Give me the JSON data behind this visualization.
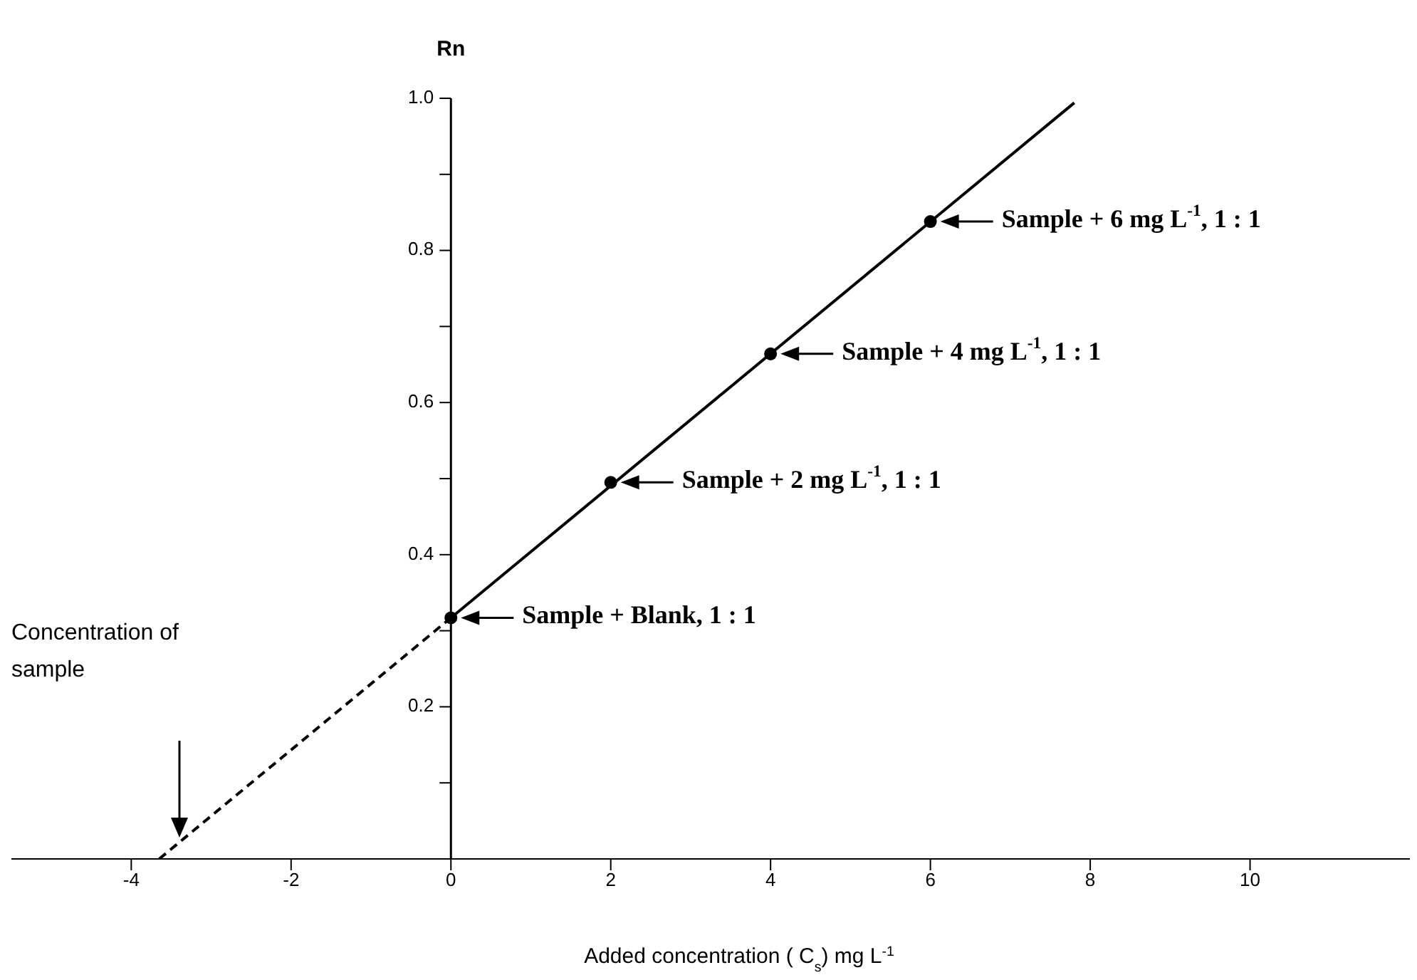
{
  "chart_data": {
    "type": "scatter",
    "ylabel": "Rn",
    "xlabel": "Added concentration ( C$_{s}$) mg L$^{-1}$",
    "xlim": [
      -5.5,
      12
    ],
    "xticks": [
      -4,
      -2,
      0,
      2,
      4,
      6,
      8,
      10
    ],
    "ylim": [
      0,
      1.0
    ],
    "yticks": [
      {
        "value": 0,
        "label": null
      },
      {
        "value": 0.1,
        "label": null
      },
      0.2,
      {
        "value": 0.3,
        "label": null
      },
      0.4,
      {
        "value": 0.5,
        "label": null
      },
      0.6,
      {
        "value": 0.7,
        "label": null
      },
      0.8,
      {
        "value": 0.9,
        "label": null
      },
      {
        "value": 1,
        "label": "1.0"
      }
    ],
    "grid": false,
    "marker": "circle",
    "series": [
      {
        "type": "line",
        "color": "#000000",
        "line_style": "solid",
        "marker": "none",
        "x": [
          0,
          7.8
        ],
        "values": [
          0.317,
          0.994
        ]
      },
      {
        "type": "line",
        "color": "#000000",
        "line_style": "dashed",
        "marker": "none",
        "x": [
          -3.65,
          0
        ],
        "values": [
          0,
          0.317
        ]
      },
      {
        "type": "scatter",
        "color": "#000000",
        "x": [
          0,
          2,
          4,
          6
        ],
        "values": [
          0.317,
          0.495,
          0.664,
          0.838
        ]
      }
    ],
    "annotations": [
      {
        "text": "Sample + Blank, 1 : 1",
        "x": 0,
        "y": 0.317
      },
      {
        "text": "Sample + 2 mg L$^{-1}$, 1 : 1",
        "x": 2,
        "y": 0.495
      },
      {
        "text": "Sample + 4 mg L$^{-1}$, 1 : 1",
        "x": 4,
        "y": 0.664
      },
      {
        "text": "Sample + 6 mg L$^{-1}$, 1 : 1",
        "x": 6,
        "y": 0.838
      },
      "Concentration of sample"
    ]
  }
}
